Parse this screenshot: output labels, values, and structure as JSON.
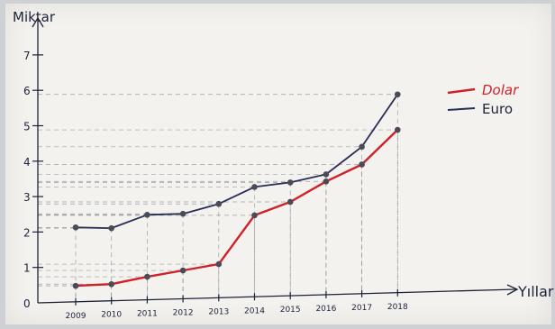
{
  "chart_data": {
    "type": "line",
    "ylabel": "Miktar",
    "xlabel": "Yıllar",
    "categories": [
      "2009",
      "2010",
      "2011",
      "2012",
      "2013",
      "2014",
      "2015",
      "2016",
      "2017",
      "2018"
    ],
    "x_tick_labels": [
      "2009",
      "2010",
      "2011",
      "2012",
      "2013",
      "2014",
      "2015",
      "2016",
      "2017",
      "2018"
    ],
    "yticks": [
      "0",
      "1",
      "2",
      "3",
      "4",
      "5",
      "6",
      "7"
    ],
    "ylim": [
      0,
      7.5
    ],
    "grid": false,
    "legend_position": "top-right",
    "series": [
      {
        "name": "Dolar",
        "color": "#d0202a",
        "values": [
          0.45,
          0.47,
          0.65,
          0.8,
          0.95,
          2.3,
          2.65,
          3.2,
          3.65,
          4.6
        ]
      },
      {
        "name": "Euro",
        "color": "#2a2d55",
        "values": [
          2.1,
          2.05,
          2.4,
          2.4,
          2.65,
          3.1,
          3.2,
          3.4,
          4.15,
          5.6
        ]
      }
    ]
  }
}
